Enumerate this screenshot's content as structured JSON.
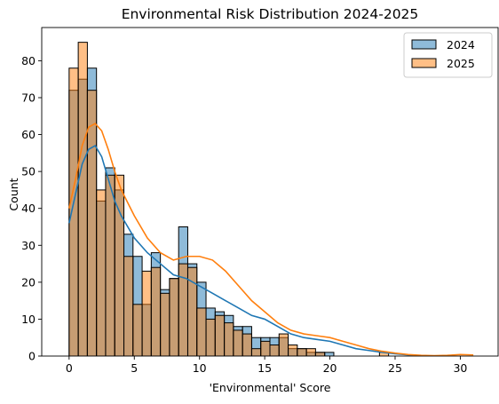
{
  "chart_data": {
    "type": "histogram",
    "title": "Environmental Risk Distribution 2024-2025",
    "xlabel": "'Environmental' Score",
    "ylabel": "Count",
    "xlim": [
      -2.1,
      32.9
    ],
    "ylim": [
      0,
      89
    ],
    "xticks": [
      0,
      5,
      10,
      15,
      20,
      25,
      30
    ],
    "yticks": [
      0,
      10,
      20,
      30,
      40,
      50,
      60,
      70,
      80
    ],
    "xtick_labels": [
      "0",
      "5",
      "10",
      "15",
      "20",
      "25",
      "30"
    ],
    "ytick_labels": [
      "0",
      "10",
      "20",
      "30",
      "40",
      "50",
      "60",
      "70",
      "80"
    ],
    "legend_position": "upper right",
    "grid": false,
    "series": [
      {
        "name": "2024",
        "color": "#1f77b4",
        "bin_start": 0,
        "bin_width": 0.7,
        "counts": [
          72,
          75,
          78,
          42,
          51,
          45,
          33,
          27,
          14,
          28,
          18,
          21,
          35,
          25,
          20,
          13,
          12,
          11,
          8,
          8,
          5,
          5,
          5,
          5,
          2,
          2,
          1,
          1,
          1,
          0,
          0,
          0,
          0,
          0,
          0
        ],
        "kde": [
          [
            0,
            36
          ],
          [
            0.5,
            44
          ],
          [
            1,
            52
          ],
          [
            1.5,
            56
          ],
          [
            2,
            57
          ],
          [
            2.5,
            54
          ],
          [
            3,
            48
          ],
          [
            3.5,
            42
          ],
          [
            4,
            38
          ],
          [
            5,
            32
          ],
          [
            6,
            28
          ],
          [
            7,
            25
          ],
          [
            8,
            22
          ],
          [
            9,
            21
          ],
          [
            10,
            19
          ],
          [
            11,
            17
          ],
          [
            12,
            15
          ],
          [
            13,
            13
          ],
          [
            14,
            11
          ],
          [
            15,
            10
          ],
          [
            16,
            8
          ],
          [
            17,
            6
          ],
          [
            18,
            5
          ],
          [
            19,
            4.5
          ],
          [
            20,
            4
          ],
          [
            21,
            3
          ],
          [
            22,
            2
          ],
          [
            23,
            1.5
          ],
          [
            24,
            1
          ],
          [
            25,
            0.6
          ],
          [
            26,
            0.3
          ],
          [
            27,
            0.1
          ]
        ]
      },
      {
        "name": "2025",
        "color": "#ff7f0e",
        "bin_start": 0,
        "bin_width": 0.7,
        "counts": [
          78,
          85,
          72,
          45,
          49,
          49,
          27,
          14,
          23,
          24,
          17,
          21,
          25,
          24,
          13,
          10,
          11,
          9,
          7,
          6,
          2,
          4,
          3,
          6,
          3,
          2,
          2,
          1,
          0,
          0,
          0,
          0,
          0,
          0,
          1
        ],
        "kde": [
          [
            0,
            40
          ],
          [
            0.5,
            48
          ],
          [
            1,
            57
          ],
          [
            1.5,
            62
          ],
          [
            2,
            63
          ],
          [
            2.5,
            61
          ],
          [
            3,
            56
          ],
          [
            3.5,
            50
          ],
          [
            4,
            45
          ],
          [
            5,
            38
          ],
          [
            6,
            32
          ],
          [
            7,
            28
          ],
          [
            8,
            26
          ],
          [
            9,
            27
          ],
          [
            10,
            27
          ],
          [
            11,
            26
          ],
          [
            12,
            23
          ],
          [
            13,
            19
          ],
          [
            14,
            15
          ],
          [
            15,
            12
          ],
          [
            16,
            9
          ],
          [
            17,
            7
          ],
          [
            18,
            6
          ],
          [
            19,
            5.5
          ],
          [
            20,
            5
          ],
          [
            21,
            4
          ],
          [
            22,
            3
          ],
          [
            23,
            2
          ],
          [
            24,
            1.3
          ],
          [
            25,
            0.8
          ],
          [
            26,
            0.4
          ],
          [
            27,
            0.2
          ],
          [
            28,
            0.1
          ],
          [
            29,
            0.2
          ],
          [
            30,
            0.4
          ],
          [
            31,
            0.3
          ]
        ]
      }
    ]
  }
}
